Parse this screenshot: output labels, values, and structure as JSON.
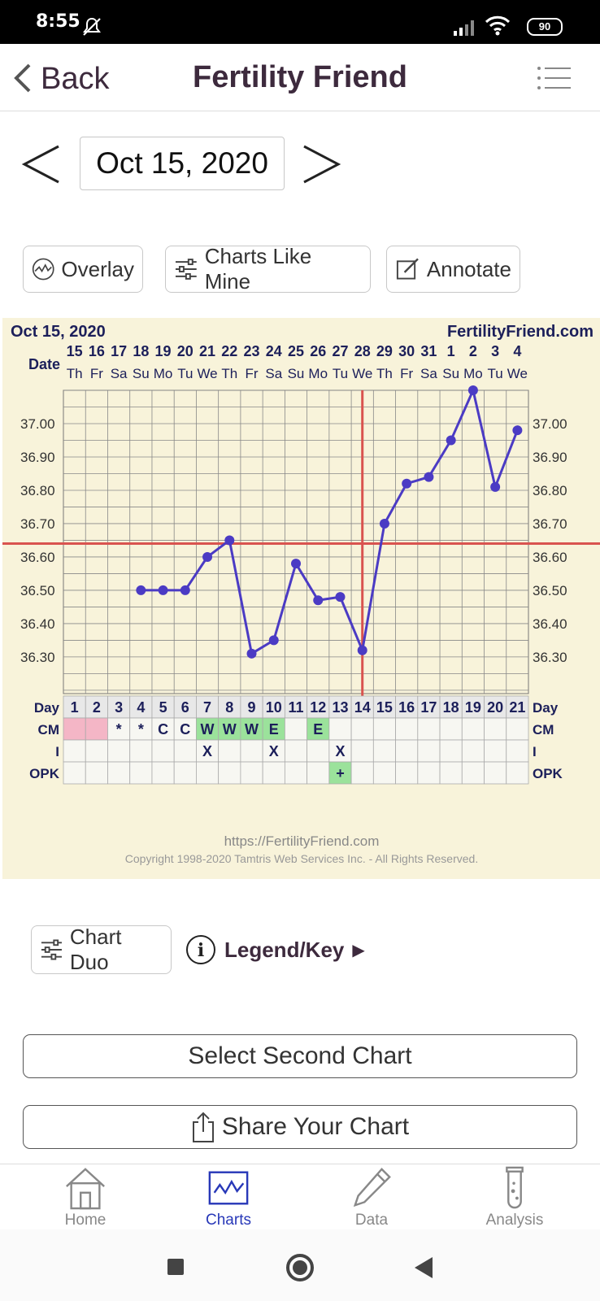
{
  "status_bar": {
    "time": "8:55",
    "battery": "90"
  },
  "header": {
    "back_label": "Back",
    "title": "Fertility Friend"
  },
  "date_nav": {
    "date": "Oct 15, 2020"
  },
  "chips": {
    "overlay": "Overlay",
    "charts_like_mine": "Charts Like Mine",
    "annotate": "Annotate"
  },
  "chart_panel": {
    "date": "Oct 15, 2020",
    "site": "FertilityFriend.com",
    "footer_url": "https://FertilityFriend.com",
    "copyright": "Copyright 1998-2020 Tamtris Web Services Inc. - All Rights Reserved.",
    "row_labels": {
      "date": "Date",
      "day": "Day",
      "cm": "CM",
      "i": "I",
      "opk": "OPK"
    }
  },
  "chart_data": {
    "type": "line",
    "dates": [
      "15",
      "16",
      "17",
      "18",
      "19",
      "20",
      "21",
      "22",
      "23",
      "24",
      "25",
      "26",
      "27",
      "28",
      "29",
      "30",
      "31",
      "1",
      "2",
      "3",
      "4"
    ],
    "weekdays": [
      "Th",
      "Fr",
      "Sa",
      "Su",
      "Mo",
      "Tu",
      "We",
      "Th",
      "Fr",
      "Sa",
      "Su",
      "Mo",
      "Tu",
      "We",
      "Th",
      "Fr",
      "Sa",
      "Su",
      "Mo",
      "Tu",
      "We"
    ],
    "cycle_days": [
      1,
      2,
      3,
      4,
      5,
      6,
      7,
      8,
      9,
      10,
      11,
      12,
      13,
      14,
      15,
      16,
      17,
      18,
      19,
      20,
      21
    ],
    "yticks": [
      "37.00",
      "36.90",
      "36.80",
      "36.70",
      "36.60",
      "36.50",
      "36.40",
      "36.30"
    ],
    "ylim": [
      36.19,
      37.1
    ],
    "series": [
      {
        "color": "#4b3bc4",
        "values": [
          null,
          null,
          null,
          36.5,
          36.5,
          36.5,
          36.6,
          36.65,
          36.31,
          36.35,
          36.58,
          36.47,
          36.48,
          36.32,
          36.7,
          36.82,
          36.84,
          36.95,
          37.1,
          36.81,
          36.98
        ]
      }
    ],
    "coverline": 36.64,
    "ovulation_day": 14,
    "cm": [
      "pink",
      "pink",
      "*",
      "*",
      "C",
      "C",
      "W",
      "W",
      "W",
      "E",
      "",
      "E",
      "",
      "",
      "",
      "",
      "",
      "",
      "",
      "",
      ""
    ],
    "intercourse": [
      "",
      "",
      "",
      "",
      "",
      "",
      "X",
      "",
      "",
      "X",
      "",
      "",
      "X",
      "",
      "",
      "",
      "",
      "",
      "",
      "",
      ""
    ],
    "opk": [
      "",
      "",
      "",
      "",
      "",
      "",
      "",
      "",
      "",
      "",
      "",
      "",
      "+",
      "",
      "",
      "",
      "",
      "",
      "",
      "",
      ""
    ]
  },
  "chart_duo": {
    "label": "Chart Duo",
    "legend_label": "Legend/Key"
  },
  "buttons": {
    "select_second": "Select Second Chart",
    "share": "Share Your Chart"
  },
  "bottom_nav": {
    "items": [
      {
        "label": "Home",
        "active": false
      },
      {
        "label": "Charts",
        "active": true
      },
      {
        "label": "Data",
        "active": false
      },
      {
        "label": "Analysis",
        "active": false
      }
    ]
  },
  "colors": {
    "accent": "#2838b8",
    "brand_text": "#3d2a3d",
    "chart_bg": "#f8f3da",
    "coverline": "#d9534f",
    "cm_pink": "#f4b6c6",
    "cm_green": "#9be29b",
    "temp_line": "#4b3bc4",
    "header_navy": "#1c1f5a"
  }
}
